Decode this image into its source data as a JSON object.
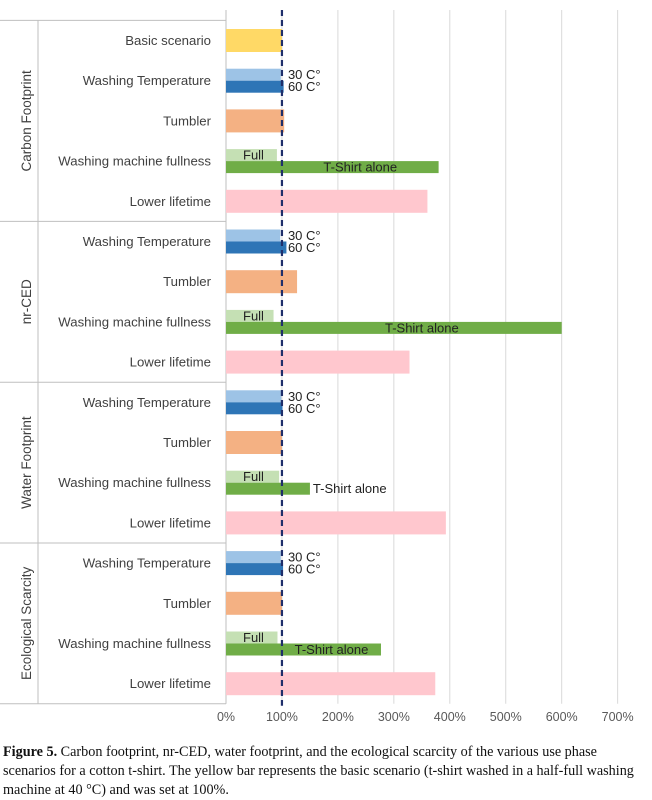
{
  "chart_data": {
    "type": "bar",
    "orientation": "horizontal",
    "x_ticks": [
      "0%",
      "100%",
      "200%",
      "300%",
      "400%",
      "500%",
      "600%",
      "700%"
    ],
    "xlim": [
      0,
      700
    ],
    "grid": true,
    "reference_line": {
      "value": 100,
      "style": "dashed",
      "color": "#1f2f6b"
    },
    "colors": {
      "basic": "#ffd966",
      "temp30": "#9dc3e6",
      "temp60": "#2e75b6",
      "tumbler": "#f4b183",
      "full": "#c5e0b4",
      "alone": "#70ad47",
      "lifetime": "#ffc7ce"
    },
    "groups": [
      {
        "name": "Carbon Footprint",
        "rows": [
          {
            "label": "Basic scenario",
            "bars": [
              {
                "key": "basic",
                "value": 100
              }
            ]
          },
          {
            "label": "Washing Temperature",
            "bars": [
              {
                "key": "temp30",
                "value": 98,
                "tag": "30 C°"
              },
              {
                "key": "temp60",
                "value": 103,
                "tag": "60 C°"
              }
            ]
          },
          {
            "label": "Tumbler",
            "bars": [
              {
                "key": "tumbler",
                "value": 104
              }
            ]
          },
          {
            "label": "Washing machine fullness",
            "bars": [
              {
                "key": "full",
                "value": 91,
                "tag": "Full",
                "tag_inside": true
              },
              {
                "key": "alone",
                "value": 380,
                "tag": "T-Shirt alone",
                "tag_inside": true
              }
            ]
          },
          {
            "label": "Lower lifetime",
            "bars": [
              {
                "key": "lifetime",
                "value": 360
              }
            ]
          }
        ]
      },
      {
        "name": "nr-CED",
        "rows": [
          {
            "label": "Washing Temperature",
            "bars": [
              {
                "key": "temp30",
                "value": 97,
                "tag": "30 C°"
              },
              {
                "key": "temp60",
                "value": 108,
                "tag": "60 C°"
              }
            ]
          },
          {
            "label": "Tumbler",
            "bars": [
              {
                "key": "tumbler",
                "value": 127
              }
            ]
          },
          {
            "label": "Washing machine fullness",
            "bars": [
              {
                "key": "full",
                "value": 85,
                "tag": "Full",
                "tag_inside": true
              },
              {
                "key": "alone",
                "value": 600,
                "tag": "T-Shirt alone",
                "tag_inside": true
              }
            ]
          },
          {
            "label": "Lower lifetime",
            "bars": [
              {
                "key": "lifetime",
                "value": 328
              }
            ]
          }
        ]
      },
      {
        "name": "Water Footprint",
        "rows": [
          {
            "label": "Washing Temperature",
            "bars": [
              {
                "key": "temp30",
                "value": 99,
                "tag": "30 C°"
              },
              {
                "key": "temp60",
                "value": 101,
                "tag": "60 C°"
              }
            ]
          },
          {
            "label": "Tumbler",
            "bars": [
              {
                "key": "tumbler",
                "value": 100
              }
            ]
          },
          {
            "label": "Washing machine fullness",
            "bars": [
              {
                "key": "full",
                "value": 95,
                "tag": "Full",
                "tag_inside": true
              },
              {
                "key": "alone",
                "value": 150,
                "tag": "T-Shirt alone",
                "tag_inside": false
              }
            ]
          },
          {
            "label": "Lower lifetime",
            "bars": [
              {
                "key": "lifetime",
                "value": 393
              }
            ]
          }
        ]
      },
      {
        "name": "Ecological Scarcity",
        "rows": [
          {
            "label": "Washing Temperature",
            "bars": [
              {
                "key": "temp30",
                "value": 98,
                "tag": "30 C°"
              },
              {
                "key": "temp60",
                "value": 102,
                "tag": "60 C°"
              }
            ]
          },
          {
            "label": "Tumbler",
            "bars": [
              {
                "key": "tumbler",
                "value": 100
              }
            ]
          },
          {
            "label": "Washing machine fullness",
            "bars": [
              {
                "key": "full",
                "value": 92,
                "tag": "Full",
                "tag_inside": true
              },
              {
                "key": "alone",
                "value": 277,
                "tag": "T-Shirt alone",
                "tag_inside": true
              }
            ]
          },
          {
            "label": "Lower lifetime",
            "bars": [
              {
                "key": "lifetime",
                "value": 374
              }
            ]
          }
        ]
      }
    ]
  },
  "caption": {
    "label": "Figure 5.",
    "text": " Carbon footprint, nr-CED, water footprint, and the ecological scarcity of the various use phase scenarios for a cotton t-shirt. The yellow bar represents the basic scenario (t-shirt washed in a half-full washing machine at 40 °C) and was set at 100%."
  }
}
